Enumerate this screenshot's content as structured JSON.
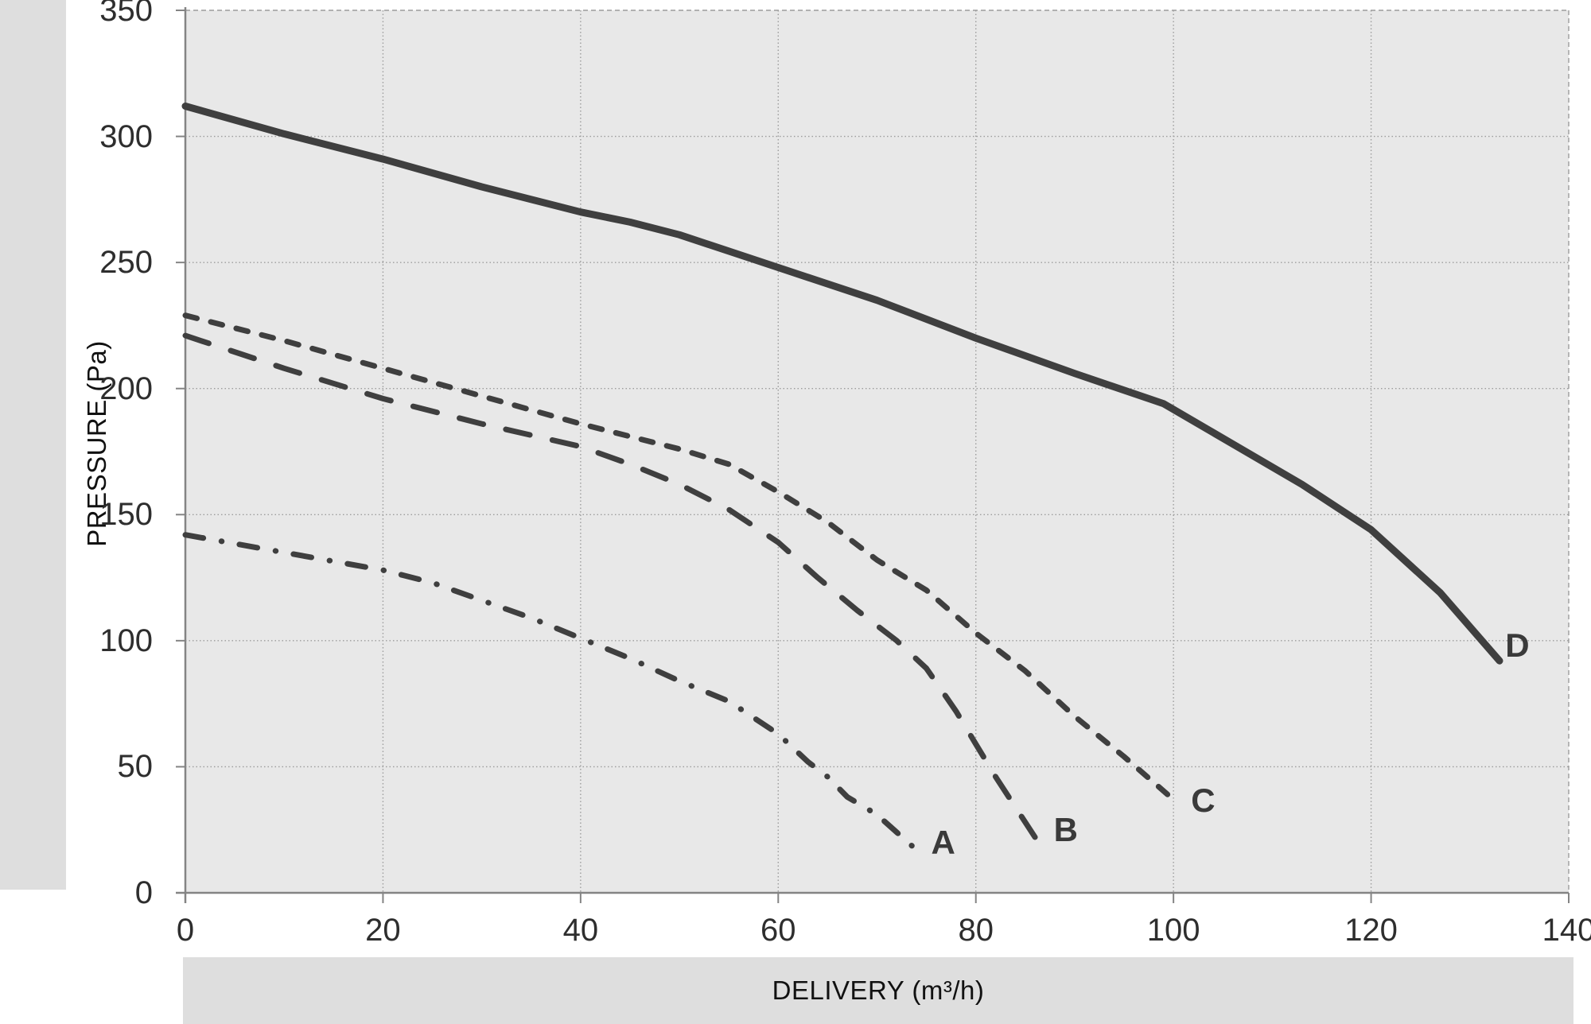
{
  "labels": {
    "y_axis_title": "PRESSURE (Pa)",
    "x_axis_title": "DELIVERY (m³/h)"
  },
  "colors": {
    "page_background": "#ffffff",
    "band_background": "#dedede",
    "plot_background": "#e8e8e8",
    "gridline": "#9c9c9c",
    "axis_line": "#848484",
    "curve_stroke": "#3f3f3f",
    "tick_text": "#2e2e2e",
    "title_text": "#111111"
  },
  "chart_data": {
    "type": "line",
    "title": "",
    "xlabel": "DELIVERY (m³/h)",
    "ylabel": "PRESSURE (Pa)",
    "xlim": [
      0,
      140
    ],
    "ylim": [
      0,
      350
    ],
    "x_ticks": [
      0,
      20,
      40,
      60,
      80,
      100,
      120,
      140
    ],
    "y_ticks": [
      0,
      50,
      100,
      150,
      200,
      250,
      300,
      350
    ],
    "grid": true,
    "legend_position": "inline-curve-labels",
    "series": [
      {
        "name": "A",
        "style": "dash-dot",
        "label_pos": [
          76.7,
          20
        ],
        "points": [
          [
            0,
            142
          ],
          [
            10,
            135
          ],
          [
            20,
            128
          ],
          [
            25,
            123
          ],
          [
            30,
            116
          ],
          [
            35,
            109
          ],
          [
            40,
            101
          ],
          [
            45,
            93
          ],
          [
            50,
            84
          ],
          [
            55,
            76
          ],
          [
            60,
            63
          ],
          [
            63,
            52
          ],
          [
            65,
            46
          ],
          [
            67,
            38
          ],
          [
            70,
            31
          ],
          [
            72,
            24
          ],
          [
            74,
            17
          ]
        ]
      },
      {
        "name": "B",
        "style": "long-dash",
        "label_pos": [
          89.1,
          25
        ],
        "points": [
          [
            0,
            221
          ],
          [
            10,
            208
          ],
          [
            20,
            196
          ],
          [
            30,
            186
          ],
          [
            40,
            177
          ],
          [
            45,
            170
          ],
          [
            50,
            162
          ],
          [
            55,
            152
          ],
          [
            60,
            139
          ],
          [
            64,
            125
          ],
          [
            68,
            112
          ],
          [
            72,
            100
          ],
          [
            75,
            89
          ],
          [
            78,
            72
          ],
          [
            80,
            59
          ],
          [
            82,
            46
          ],
          [
            84,
            34
          ],
          [
            86,
            22
          ]
        ]
      },
      {
        "name": "C",
        "style": "short-dash",
        "label_pos": [
          103,
          36.5
        ],
        "points": [
          [
            0,
            229
          ],
          [
            10,
            219
          ],
          [
            20,
            208
          ],
          [
            30,
            197
          ],
          [
            40,
            186
          ],
          [
            45,
            181
          ],
          [
            50,
            176
          ],
          [
            55,
            170
          ],
          [
            60,
            159
          ],
          [
            65,
            147
          ],
          [
            70,
            132
          ],
          [
            75,
            120
          ],
          [
            80,
            103
          ],
          [
            85,
            88
          ],
          [
            90,
            70
          ],
          [
            95,
            54
          ],
          [
            100,
            37
          ]
        ]
      },
      {
        "name": "D",
        "style": "solid",
        "label_pos": [
          134.8,
          98
        ],
        "points": [
          [
            0,
            312
          ],
          [
            10,
            301
          ],
          [
            20,
            291
          ],
          [
            30,
            280
          ],
          [
            40,
            270
          ],
          [
            45,
            266
          ],
          [
            50,
            261
          ],
          [
            60,
            248
          ],
          [
            70,
            235
          ],
          [
            80,
            220
          ],
          [
            90,
            206
          ],
          [
            99,
            194
          ],
          [
            106,
            178
          ],
          [
            113,
            162
          ],
          [
            120,
            144
          ],
          [
            127,
            119
          ],
          [
            133,
            92
          ]
        ]
      }
    ]
  }
}
